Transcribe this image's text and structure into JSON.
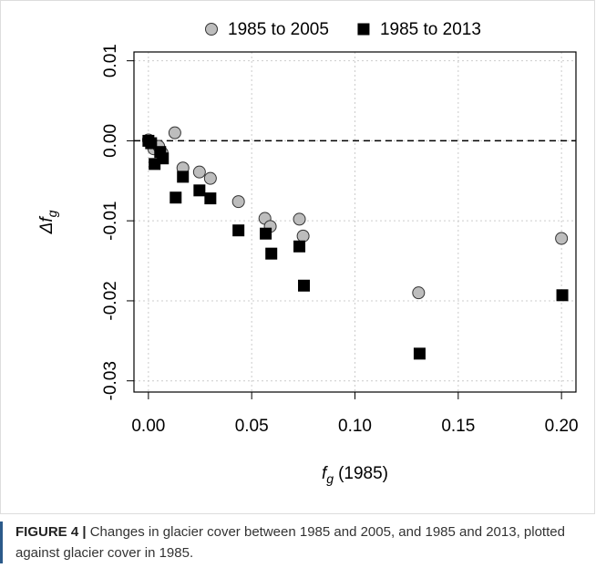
{
  "chart_data": {
    "type": "scatter",
    "x_label": {
      "symbol": "f",
      "subscript": "g",
      "text": "(1985)"
    },
    "y_label": {
      "symbol": "Δf",
      "subscript": "g"
    },
    "xlim": [
      -0.007,
      0.207
    ],
    "ylim": [
      -0.0314,
      0.0111
    ],
    "xticks": [
      {
        "value": 0,
        "label": "0.00"
      },
      {
        "value": 0.05,
        "label": "0.05"
      },
      {
        "value": 0.1,
        "label": "0.10"
      },
      {
        "value": 0.15,
        "label": "0.15"
      },
      {
        "value": 0.2,
        "label": "0.20"
      }
    ],
    "yticks": [
      {
        "value": -0.03,
        "label": "-0.03"
      },
      {
        "value": -0.02,
        "label": "-0.02"
      },
      {
        "value": -0.01,
        "label": "-0.01"
      },
      {
        "value": 0,
        "label": "0.00"
      },
      {
        "value": 0.01,
        "label": "0.01"
      }
    ],
    "grid": true,
    "hline": 0,
    "legend": "top",
    "series": [
      {
        "name": "1985 to 2005",
        "color": "#bdbdbd",
        "marker": "circle",
        "x": [
          0,
          0.0013,
          0.0026,
          0.005,
          0.0066,
          0.0128,
          0.0167,
          0.0247,
          0.03,
          0.0436,
          0.0564,
          0.059,
          0.0731,
          0.0749,
          0.1308,
          0.2
        ],
        "values": [
          0.0001,
          -0.0003,
          -0.001,
          -0.0007,
          -0.0015,
          0.001,
          -0.0034,
          -0.0039,
          -0.0047,
          -0.0076,
          -0.0097,
          -0.0107,
          -0.0098,
          -0.0119,
          -0.019,
          -0.0122
        ]
      },
      {
        "name": "1985 to 2013",
        "color": "#000000",
        "marker": "square",
        "x": [
          0,
          0.0013,
          0.003,
          0.0057,
          0.007,
          0.0132,
          0.0167,
          0.0247,
          0.03,
          0.0436,
          0.0568,
          0.0595,
          0.0731,
          0.0753,
          0.1313,
          0.2004
        ],
        "values": [
          0,
          -0.0003,
          -0.0029,
          -0.0014,
          -0.0022,
          -0.0071,
          -0.0045,
          -0.0062,
          -0.0072,
          -0.0112,
          -0.0116,
          -0.0141,
          -0.0132,
          -0.0181,
          -0.0266,
          -0.0193
        ]
      }
    ]
  },
  "caption": {
    "label": "FIGURE 4 |",
    "text": "Changes in glacier cover between 1985 and 2005, and 1985 and 2013, plotted against glacier cover in 1985."
  }
}
